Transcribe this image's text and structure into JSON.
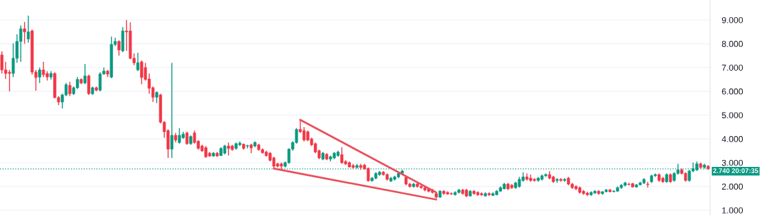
{
  "chart_data": {
    "type": "candlestick",
    "categories": [
      null,
      null,
      null,
      null,
      null,
      null,
      null,
      null,
      null,
      null,
      null,
      null,
      null,
      null,
      null,
      null,
      null,
      null,
      null,
      null,
      null,
      null,
      null,
      null,
      null,
      null,
      null,
      null,
      null,
      null,
      null,
      null,
      null,
      null,
      null,
      null,
      null,
      null,
      null,
      null,
      null,
      null,
      null,
      null,
      null,
      null,
      null,
      null,
      null,
      null,
      null,
      null,
      null,
      null,
      null,
      null,
      null,
      null,
      null,
      null,
      null,
      null,
      null,
      null,
      null,
      null,
      null,
      null,
      null,
      null,
      null,
      null,
      null,
      null,
      null,
      null,
      null,
      null,
      null,
      null,
      null,
      null,
      null,
      null,
      null,
      null,
      null,
      null,
      null,
      null,
      null,
      null,
      null,
      null,
      null,
      null,
      null,
      null,
      null,
      null,
      null,
      null,
      null,
      null,
      null,
      null,
      null,
      null,
      null,
      null,
      null,
      null,
      null,
      null,
      null,
      null,
      null,
      null,
      null,
      null,
      null,
      null,
      null,
      null,
      null,
      null,
      null,
      null,
      null,
      null,
      null,
      null,
      null,
      null,
      null,
      null,
      null,
      null,
      null,
      null,
      null,
      null,
      null,
      null,
      null,
      null,
      null,
      null,
      null,
      null,
      null,
      null,
      null,
      null,
      null,
      null,
      null,
      null,
      null,
      null,
      null,
      null,
      null,
      null,
      null,
      null,
      null,
      null,
      null,
      null,
      null,
      null,
      null,
      null,
      null,
      null,
      null,
      null,
      null,
      null,
      null,
      null,
      null,
      null,
      null,
      null,
      null,
      null
    ],
    "ohlc": [
      [
        7.53,
        7.68,
        6.75,
        6.9
      ],
      [
        6.9,
        7.24,
        6.52,
        6.75
      ],
      [
        6.8,
        6.9,
        6.0,
        6.75
      ],
      [
        6.75,
        8.02,
        6.6,
        7.39
      ],
      [
        7.39,
        8.4,
        7.2,
        8.1
      ],
      [
        8.1,
        8.77,
        7.24,
        8.63
      ],
      [
        8.63,
        8.92,
        8.0,
        8.5
      ],
      [
        8.2,
        9.18,
        8.05,
        8.5
      ],
      [
        8.54,
        8.6,
        6.7,
        6.81
      ],
      [
        6.81,
        6.9,
        6.03,
        6.58
      ],
      [
        6.6,
        7.0,
        6.35,
        6.9
      ],
      [
        6.9,
        7.24,
        6.6,
        6.7
      ],
      [
        6.75,
        6.85,
        6.45,
        6.6
      ],
      [
        6.6,
        6.85,
        6.5,
        6.75
      ],
      [
        6.75,
        6.8,
        5.7,
        5.74
      ],
      [
        5.74,
        5.8,
        5.42,
        5.55
      ],
      [
        5.55,
        5.9,
        5.28,
        5.85
      ],
      [
        5.85,
        6.35,
        5.8,
        6.28
      ],
      [
        6.25,
        6.4,
        5.8,
        5.9
      ],
      [
        5.9,
        6.2,
        5.85,
        6.15
      ],
      [
        6.15,
        6.6,
        6.1,
        6.5
      ],
      [
        6.5,
        6.55,
        6.3,
        6.35
      ],
      [
        6.35,
        7.15,
        6.3,
        6.65
      ],
      [
        6.65,
        6.7,
        5.85,
        5.9
      ],
      [
        5.9,
        6.2,
        5.85,
        6.15
      ],
      [
        6.15,
        6.2,
        6.0,
        6.05
      ],
      [
        6.05,
        6.8,
        6.0,
        6.73
      ],
      [
        6.73,
        7.0,
        6.7,
        6.85
      ],
      [
        6.85,
        6.9,
        6.6,
        6.72
      ],
      [
        6.6,
        8.3,
        6.55,
        7.97
      ],
      [
        7.97,
        8.25,
        7.9,
        8.1
      ],
      [
        8.1,
        8.15,
        7.5,
        7.74
      ],
      [
        7.7,
        8.7,
        7.65,
        8.54
      ],
      [
        8.54,
        9.0,
        7.7,
        8.5
      ],
      [
        8.54,
        8.9,
        7.35,
        7.39
      ],
      [
        7.39,
        7.6,
        7.1,
        7.2
      ],
      [
        6.9,
        7.62,
        6.85,
        7.2
      ],
      [
        7.24,
        7.3,
        6.3,
        6.58
      ],
      [
        7.0,
        7.2,
        6.45,
        6.5
      ],
      [
        6.52,
        6.75,
        5.9,
        6.13
      ],
      [
        6.15,
        6.2,
        5.55,
        5.75
      ],
      [
        5.75,
        6.0,
        5.5,
        5.95
      ],
      [
        5.85,
        5.9,
        4.65,
        4.7
      ],
      [
        4.7,
        4.75,
        4.05,
        4.3
      ],
      [
        4.35,
        4.4,
        3.2,
        3.57
      ],
      [
        3.57,
        7.2,
        3.2,
        4.15
      ],
      [
        4.15,
        4.25,
        3.85,
        3.95
      ],
      [
        3.85,
        4.45,
        3.8,
        4.15
      ],
      [
        4.05,
        4.3,
        4.0,
        4.2
      ],
      [
        4.25,
        4.3,
        3.75,
        3.8
      ],
      [
        3.8,
        4.15,
        3.75,
        4.1
      ],
      [
        4.25,
        4.35,
        3.8,
        3.85
      ],
      [
        3.9,
        3.95,
        3.55,
        3.6
      ],
      [
        3.7,
        3.75,
        3.45,
        3.5
      ],
      [
        3.63,
        3.7,
        3.2,
        3.25
      ],
      [
        3.4,
        3.45,
        3.25,
        3.28
      ],
      [
        3.28,
        3.45,
        3.25,
        3.4
      ],
      [
        3.4,
        3.45,
        3.25,
        3.28
      ],
      [
        3.3,
        3.65,
        3.28,
        3.6
      ],
      [
        3.4,
        3.75,
        3.35,
        3.7
      ],
      [
        3.7,
        3.85,
        3.3,
        3.6
      ],
      [
        3.7,
        3.75,
        3.5,
        3.55
      ],
      [
        3.6,
        3.85,
        3.55,
        3.8
      ],
      [
        3.75,
        3.9,
        3.7,
        3.82
      ],
      [
        3.78,
        3.8,
        3.55,
        3.6
      ],
      [
        3.7,
        3.75,
        3.6,
        3.72
      ],
      [
        3.75,
        3.8,
        3.4,
        3.62
      ],
      [
        3.7,
        3.9,
        3.65,
        3.85
      ],
      [
        3.75,
        3.8,
        3.5,
        3.55
      ],
      [
        3.55,
        3.6,
        3.38,
        3.42
      ],
      [
        3.45,
        3.5,
        3.25,
        3.3
      ],
      [
        3.4,
        3.45,
        3.05,
        3.1
      ],
      [
        3.2,
        3.25,
        2.75,
        2.85
      ],
      [
        2.95,
        3.0,
        2.8,
        2.85
      ],
      [
        2.95,
        3.0,
        2.7,
        2.85
      ],
      [
        2.85,
        3.05,
        2.8,
        3.0
      ],
      [
        3.0,
        3.6,
        2.95,
        3.57
      ],
      [
        3.57,
        3.9,
        3.5,
        3.85
      ],
      [
        3.85,
        4.45,
        3.8,
        4.4
      ],
      [
        4.4,
        4.8,
        4.25,
        4.3
      ],
      [
        4.35,
        4.5,
        3.9,
        3.95
      ],
      [
        4.3,
        4.35,
        3.9,
        3.95
      ],
      [
        4.0,
        4.05,
        3.7,
        3.75
      ],
      [
        3.8,
        3.85,
        3.4,
        3.45
      ],
      [
        3.5,
        3.55,
        3.15,
        3.2
      ],
      [
        3.15,
        3.45,
        3.1,
        3.4
      ],
      [
        3.35,
        3.4,
        3.1,
        3.15
      ],
      [
        3.15,
        3.3,
        3.05,
        3.25
      ],
      [
        3.2,
        3.45,
        3.15,
        3.4
      ],
      [
        3.3,
        3.5,
        3.25,
        3.45
      ],
      [
        3.34,
        3.65,
        2.95,
        3.0
      ],
      [
        3.05,
        3.1,
        2.9,
        2.95
      ],
      [
        3.0,
        3.05,
        2.8,
        2.82
      ],
      [
        2.88,
        2.95,
        2.75,
        2.8
      ],
      [
        2.8,
        2.95,
        2.75,
        2.88
      ],
      [
        2.88,
        2.95,
        2.7,
        2.8
      ],
      [
        2.9,
        2.95,
        2.7,
        2.75
      ],
      [
        2.76,
        2.8,
        2.2,
        2.24
      ],
      [
        2.24,
        2.4,
        2.2,
        2.35
      ],
      [
        2.35,
        2.6,
        2.3,
        2.55
      ],
      [
        2.5,
        2.65,
        2.45,
        2.6
      ],
      [
        2.6,
        2.65,
        2.45,
        2.5
      ],
      [
        2.5,
        2.55,
        2.25,
        2.3
      ],
      [
        2.22,
        2.4,
        2.2,
        2.35
      ],
      [
        2.3,
        2.45,
        2.25,
        2.4
      ],
      [
        2.4,
        2.6,
        2.35,
        2.55
      ],
      [
        2.55,
        2.7,
        2.5,
        2.65
      ],
      [
        2.39,
        2.45,
        2.05,
        2.1
      ],
      [
        2.1,
        2.15,
        1.95,
        2.0
      ],
      [
        2.0,
        2.15,
        1.95,
        2.1
      ],
      [
        2.1,
        2.15,
        1.95,
        2.0
      ],
      [
        2.0,
        2.05,
        1.9,
        1.95
      ],
      [
        1.95,
        2.0,
        1.8,
        1.85
      ],
      [
        1.9,
        1.95,
        1.75,
        1.8
      ],
      [
        1.85,
        1.9,
        1.7,
        1.75
      ],
      [
        1.7,
        1.75,
        1.5,
        1.55
      ],
      [
        1.55,
        1.85,
        1.52,
        1.8
      ],
      [
        1.8,
        1.85,
        1.65,
        1.7
      ],
      [
        1.75,
        1.8,
        1.65,
        1.68
      ],
      [
        1.7,
        1.75,
        1.65,
        1.68
      ],
      [
        1.65,
        1.8,
        1.62,
        1.75
      ],
      [
        1.75,
        1.9,
        1.7,
        1.85
      ],
      [
        1.85,
        1.9,
        1.65,
        1.7
      ],
      [
        1.85,
        1.9,
        1.55,
        1.6
      ],
      [
        1.6,
        1.85,
        1.58,
        1.8
      ],
      [
        1.8,
        1.85,
        1.65,
        1.7
      ],
      [
        1.75,
        1.8,
        1.6,
        1.65
      ],
      [
        1.7,
        1.75,
        1.6,
        1.65
      ],
      [
        1.6,
        1.75,
        1.58,
        1.7
      ],
      [
        1.7,
        1.75,
        1.6,
        1.65
      ],
      [
        1.62,
        1.75,
        1.6,
        1.7
      ],
      [
        1.65,
        1.85,
        1.63,
        1.8
      ],
      [
        1.8,
        2.0,
        1.78,
        1.95
      ],
      [
        1.9,
        2.15,
        1.88,
        2.1
      ],
      [
        2.1,
        2.15,
        1.85,
        1.9
      ],
      [
        2.05,
        2.1,
        1.9,
        1.95
      ],
      [
        1.95,
        2.2,
        1.9,
        2.15
      ],
      [
        2.0,
        2.4,
        1.95,
        2.3
      ],
      [
        2.25,
        2.6,
        2.2,
        2.4
      ],
      [
        2.4,
        2.55,
        2.25,
        2.3
      ],
      [
        2.35,
        2.5,
        2.2,
        2.25
      ],
      [
        2.3,
        2.35,
        2.2,
        2.25
      ],
      [
        2.25,
        2.4,
        2.2,
        2.35
      ],
      [
        2.3,
        2.5,
        2.25,
        2.45
      ],
      [
        2.45,
        2.55,
        2.4,
        2.5
      ],
      [
        2.5,
        2.65,
        2.3,
        2.35
      ],
      [
        2.4,
        2.45,
        2.15,
        2.2
      ],
      [
        2.25,
        2.35,
        2.15,
        2.3
      ],
      [
        2.3,
        2.35,
        2.2,
        2.25
      ],
      [
        2.25,
        2.35,
        2.2,
        2.3
      ],
      [
        2.35,
        2.4,
        2.05,
        2.1
      ],
      [
        2.1,
        2.15,
        1.9,
        1.95
      ],
      [
        2.0,
        2.05,
        1.85,
        1.9
      ],
      [
        1.95,
        2.0,
        1.7,
        1.75
      ],
      [
        1.8,
        1.85,
        1.65,
        1.7
      ],
      [
        1.72,
        1.78,
        1.6,
        1.65
      ],
      [
        1.65,
        1.8,
        1.6,
        1.75
      ],
      [
        1.72,
        1.85,
        1.7,
        1.8
      ],
      [
        1.8,
        1.85,
        1.65,
        1.7
      ],
      [
        1.7,
        1.8,
        1.65,
        1.78
      ],
      [
        1.78,
        1.9,
        1.75,
        1.85
      ],
      [
        1.85,
        1.9,
        1.75,
        1.78
      ],
      [
        1.78,
        1.85,
        1.75,
        1.8
      ],
      [
        1.8,
        2.0,
        1.78,
        1.95
      ],
      [
        1.95,
        2.1,
        1.9,
        2.05
      ],
      [
        2.05,
        2.2,
        2.0,
        2.15
      ],
      [
        2.1,
        2.15,
        2.05,
        2.08
      ],
      [
        2.12,
        2.15,
        1.95,
        1.98
      ],
      [
        1.98,
        2.1,
        1.95,
        2.07
      ],
      [
        2.07,
        2.2,
        2.05,
        2.15
      ],
      [
        2.15,
        2.35,
        2.1,
        2.3
      ],
      [
        2.1,
        2.2,
        1.95,
        2.08
      ],
      [
        2.2,
        2.5,
        2.15,
        2.45
      ],
      [
        2.45,
        2.55,
        2.4,
        2.5
      ],
      [
        2.5,
        2.55,
        2.2,
        2.25
      ],
      [
        2.35,
        2.4,
        2.15,
        2.2
      ],
      [
        2.2,
        2.55,
        2.15,
        2.5
      ],
      [
        2.5,
        2.55,
        2.15,
        2.2
      ],
      [
        2.25,
        2.6,
        2.2,
        2.55
      ],
      [
        2.55,
        2.95,
        2.5,
        2.7
      ],
      [
        2.7,
        2.75,
        2.5,
        2.55
      ],
      [
        2.55,
        2.6,
        2.2,
        2.25
      ],
      [
        2.25,
        2.7,
        2.2,
        2.65
      ],
      [
        2.65,
        3.0,
        2.6,
        2.75
      ],
      [
        2.7,
        3.05,
        2.65,
        2.95
      ],
      [
        2.95,
        3.0,
        2.75,
        2.8
      ],
      [
        2.8,
        2.95,
        2.75,
        2.9
      ],
      [
        2.85,
        2.9,
        2.7,
        2.74
      ]
    ],
    "series": [
      {
        "type": "line",
        "color": "#e8505b",
        "values": [
          null,
          null,
          null,
          null,
          null,
          null,
          null,
          null,
          null,
          null,
          null,
          null,
          null,
          null,
          null,
          null,
          null,
          null,
          null,
          null,
          null,
          null,
          null,
          null,
          null,
          null,
          null,
          null,
          null,
          null,
          null,
          null,
          null,
          null,
          null,
          null,
          null,
          null,
          null,
          null,
          null,
          null,
          null,
          null,
          null,
          null,
          null,
          null,
          null,
          null,
          null,
          null,
          null,
          null,
          null,
          null,
          null,
          null,
          null,
          null,
          null,
          null,
          null,
          null,
          null,
          null,
          null,
          null,
          null,
          null,
          null,
          null,
          null,
          null,
          null,
          null,
          null,
          null,
          null,
          4.8,
          null,
          null,
          null,
          null,
          null,
          null,
          null,
          null,
          null,
          null,
          null,
          null,
          null,
          null,
          null,
          null,
          null,
          null,
          null,
          null,
          null,
          null,
          null,
          null,
          null,
          null,
          null,
          null,
          null,
          null,
          null,
          null,
          null,
          null,
          null,
          1.75,
          null,
          null,
          null,
          null,
          null,
          null,
          null,
          null,
          null,
          null,
          null,
          null,
          null,
          null,
          null,
          null,
          null,
          null,
          null,
          null,
          null,
          null,
          null,
          null,
          null,
          null,
          null,
          null,
          null,
          null,
          null,
          null,
          null,
          null,
          null,
          null,
          null,
          null,
          null,
          null,
          null,
          null,
          null,
          null,
          null,
          null,
          null,
          null,
          null,
          null,
          null,
          null,
          null,
          null,
          null,
          null,
          null,
          null,
          null,
          null,
          null,
          null,
          null,
          null,
          null,
          null,
          null,
          null,
          null,
          null,
          null,
          null
        ]
      },
      {
        "type": "line",
        "color": "#e8505b",
        "values": [
          null,
          null,
          null,
          null,
          null,
          null,
          null,
          null,
          null,
          null,
          null,
          null,
          null,
          null,
          null,
          null,
          null,
          null,
          null,
          null,
          null,
          null,
          null,
          null,
          null,
          null,
          null,
          null,
          null,
          null,
          null,
          null,
          null,
          null,
          null,
          null,
          null,
          null,
          null,
          null,
          null,
          null,
          null,
          null,
          null,
          null,
          null,
          null,
          null,
          null,
          null,
          null,
          null,
          null,
          null,
          null,
          null,
          null,
          null,
          null,
          null,
          null,
          null,
          null,
          null,
          null,
          null,
          null,
          null,
          null,
          null,
          null,
          2.75,
          null,
          null,
          null,
          null,
          null,
          null,
          null,
          null,
          null,
          null,
          null,
          null,
          null,
          null,
          null,
          null,
          null,
          null,
          null,
          null,
          null,
          null,
          null,
          null,
          null,
          null,
          null,
          null,
          null,
          null,
          null,
          null,
          null,
          null,
          null,
          null,
          null,
          null,
          null,
          null,
          null,
          null,
          1.45,
          null,
          null,
          null,
          null,
          null,
          null,
          null,
          null,
          null,
          null,
          null,
          null,
          null,
          null,
          null,
          null,
          null,
          null,
          null,
          null,
          null,
          null,
          null,
          null,
          null,
          null,
          null,
          null,
          null,
          null,
          null,
          null,
          null,
          null,
          null,
          null,
          null,
          null,
          null,
          null,
          null,
          null,
          null,
          null,
          null,
          null,
          null,
          null,
          null,
          null,
          null,
          null,
          null,
          null,
          null,
          null,
          null,
          null,
          null,
          null,
          null,
          null,
          null,
          null,
          null,
          null,
          null,
          null,
          null,
          null,
          null,
          null
        ]
      }
    ],
    "ylim": [
      0.8,
      9.84
    ],
    "yticks": [
      {
        "value": 1,
        "label": "1.000"
      },
      {
        "value": 2,
        "label": "2.000"
      },
      {
        "value": 3,
        "label": "3.000"
      },
      {
        "value": 4,
        "label": "4.000"
      },
      {
        "value": 5,
        "label": "5.000"
      },
      {
        "value": 6,
        "label": "6.000"
      },
      {
        "value": 7,
        "label": "7.000"
      },
      {
        "value": 8,
        "label": "8.000"
      },
      {
        "value": 9,
        "label": "9.000"
      }
    ],
    "ref_lines": [
      {
        "axis": "y",
        "value": 2.74,
        "label": "2.740",
        "color": "#089981",
        "line_style": "dotted"
      }
    ],
    "annotations": [
      "20:07:35"
    ],
    "tick_labels": "y",
    "grid": "y"
  }
}
